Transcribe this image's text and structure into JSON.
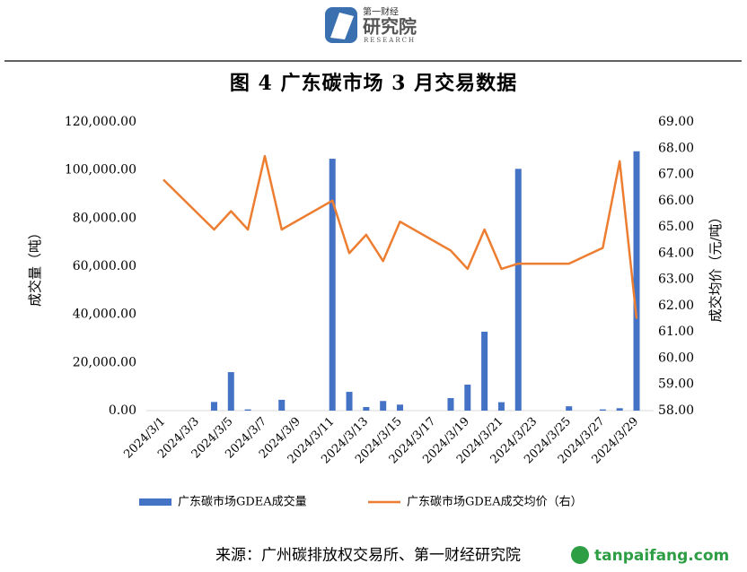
{
  "header": {
    "logo_top": "第一财经",
    "logo_main": "研究院",
    "logo_sub": "RESEARCH"
  },
  "chart_data": {
    "type": "bar_line",
    "title": "图 4  广东碳市场 3 月交易数据",
    "y_label": "成交量（吨）",
    "y2_label": "成交均价（元/吨）",
    "categories": [
      "2024/3/1",
      null,
      "2024/3/3",
      null,
      "2024/3/5",
      null,
      "2024/3/7",
      null,
      "2024/3/9",
      null,
      "2024/3/11",
      null,
      "2024/3/13",
      null,
      "2024/3/15",
      null,
      "2024/3/17",
      null,
      "2024/3/19",
      null,
      "2024/3/21",
      null,
      "2024/3/23",
      null,
      "2024/3/25",
      null,
      "2024/3/27",
      null,
      "2024/3/29"
    ],
    "series": [
      {
        "name": "广东碳市场GDEA成交量",
        "type": "bar",
        "color": "#4472c4",
        "values": [
          0,
          0,
          0,
          3600,
          16000,
          500,
          0,
          4500,
          0,
          0,
          104700,
          7800,
          1500,
          4000,
          2500,
          0,
          0,
          5200,
          10800,
          32800,
          3500,
          100500,
          0,
          0,
          1800,
          0,
          500,
          1000,
          107800
        ]
      },
      {
        "name": "广东碳市场GDEA成交均价（右）",
        "type": "line",
        "axis": "y2",
        "color": "#ed7d31",
        "connect_nulls": true,
        "values": [
          66.8,
          null,
          null,
          64.9,
          65.6,
          64.9,
          67.7,
          64.9,
          null,
          null,
          66.0,
          64.0,
          64.7,
          63.7,
          65.2,
          null,
          null,
          64.1,
          63.4,
          64.9,
          63.4,
          63.6,
          null,
          null,
          63.6,
          63.9,
          64.2,
          67.5,
          61.5
        ]
      }
    ],
    "ylim": [
      0,
      120000
    ],
    "yticks": [
      {
        "value": 0,
        "label": "0.00"
      },
      {
        "value": 20000,
        "label": "20,000.00"
      },
      {
        "value": 40000,
        "label": "40,000.00"
      },
      {
        "value": 60000,
        "label": "60,000.00"
      },
      {
        "value": 80000,
        "label": "80,000.00"
      },
      {
        "value": 100000,
        "label": "100,000.00"
      },
      {
        "value": 120000,
        "label": "120,000.00"
      }
    ],
    "y2lim": [
      58,
      69
    ],
    "y2ticks": [
      {
        "value": 58,
        "label": "58.00"
      },
      {
        "value": 59,
        "label": "59.00"
      },
      {
        "value": 60,
        "label": "60.00"
      },
      {
        "value": 61,
        "label": "61.00"
      },
      {
        "value": 62,
        "label": "62.00"
      },
      {
        "value": 63,
        "label": "63.00"
      },
      {
        "value": 64,
        "label": "64.00"
      },
      {
        "value": 65,
        "label": "65.00"
      },
      {
        "value": 66,
        "label": "66.00"
      },
      {
        "value": 67,
        "label": "67.00"
      },
      {
        "value": 68,
        "label": "68.00"
      },
      {
        "value": 69,
        "label": "69.00"
      }
    ],
    "legend": "bottom"
  },
  "source": "来源：广州碳排放权交易所、第一财经研究院",
  "watermark": "tanpaifang.com"
}
